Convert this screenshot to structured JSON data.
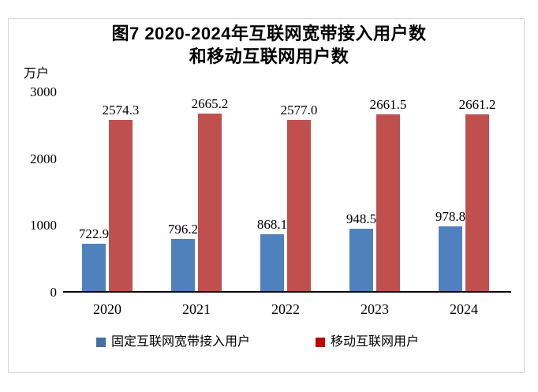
{
  "figure": {
    "title_line1": "图7 2020-2024年互联网宽带接入用户数",
    "title_line2": "和移动互联网用户数",
    "unit_label": "万户"
  },
  "colors": {
    "axis": "#000000",
    "frame_border": "#d8d8d8",
    "fixed_bar": "#4f81bd",
    "mobile_bar": "#c0504d",
    "legend_fixed_marker": "#4170a4",
    "legend_mobile_marker": "#c00000"
  },
  "chart_data": {
    "type": "bar",
    "title": "图7 2020-2024年互联网宽带接入用户数和移动互联网用户数",
    "unit": "万户",
    "categories": [
      "2020",
      "2021",
      "2022",
      "2023",
      "2024"
    ],
    "series": [
      {
        "name": "固定互联网宽带接入用户",
        "color": "#4f81bd",
        "values": [
          722.9,
          796.2,
          868.1,
          948.5,
          978.8
        ],
        "labels": [
          "722.9",
          "796.2",
          "868.1",
          "948.5",
          "978.8"
        ]
      },
      {
        "name": "移动互联网用户",
        "color": "#c0504d",
        "values": [
          2574.3,
          2665.2,
          2577.0,
          2661.5,
          2661.2
        ],
        "labels": [
          "2574.3",
          "2665.2",
          "2577.0",
          "2661.5",
          "2661.2"
        ]
      }
    ],
    "ylim": [
      0,
      3000
    ],
    "yticks": [
      0,
      1000,
      2000,
      3000
    ],
    "grid": false,
    "data_labels": true,
    "legend_position": "bottom"
  }
}
